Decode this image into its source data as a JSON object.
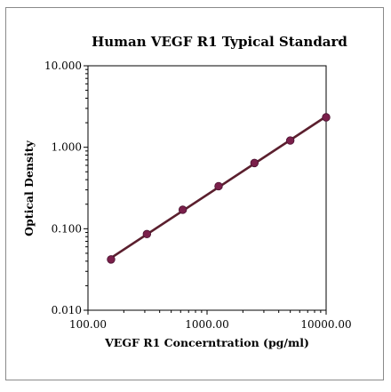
{
  "chart_data": {
    "type": "scatter",
    "title": "Human VEGF R1 Typical Standard",
    "xlabel": "VEGF R1 Concerntration (pg/ml)",
    "ylabel": "Optical Density",
    "xscale": "log",
    "yscale": "log",
    "xlim": [
      100,
      10000
    ],
    "ylim": [
      0.01,
      10
    ],
    "x_ticks": [
      100,
      1000,
      10000
    ],
    "x_tick_labels": [
      "100.00",
      "1000.00",
      "10000.00"
    ],
    "y_ticks": [
      10,
      1,
      0.1,
      0.01
    ],
    "y_tick_labels": [
      "10.000",
      "1.000",
      "0.100",
      "0.010"
    ],
    "grid": false,
    "series": [
      {
        "x": [
          156.25,
          312.5,
          625,
          1250,
          2500,
          5000,
          10000
        ],
        "y": [
          0.042,
          0.086,
          0.171,
          0.333,
          0.641,
          1.21,
          2.33
        ],
        "color": "#7a1f4a",
        "fit_line_color": "#5b1f2e"
      }
    ]
  }
}
